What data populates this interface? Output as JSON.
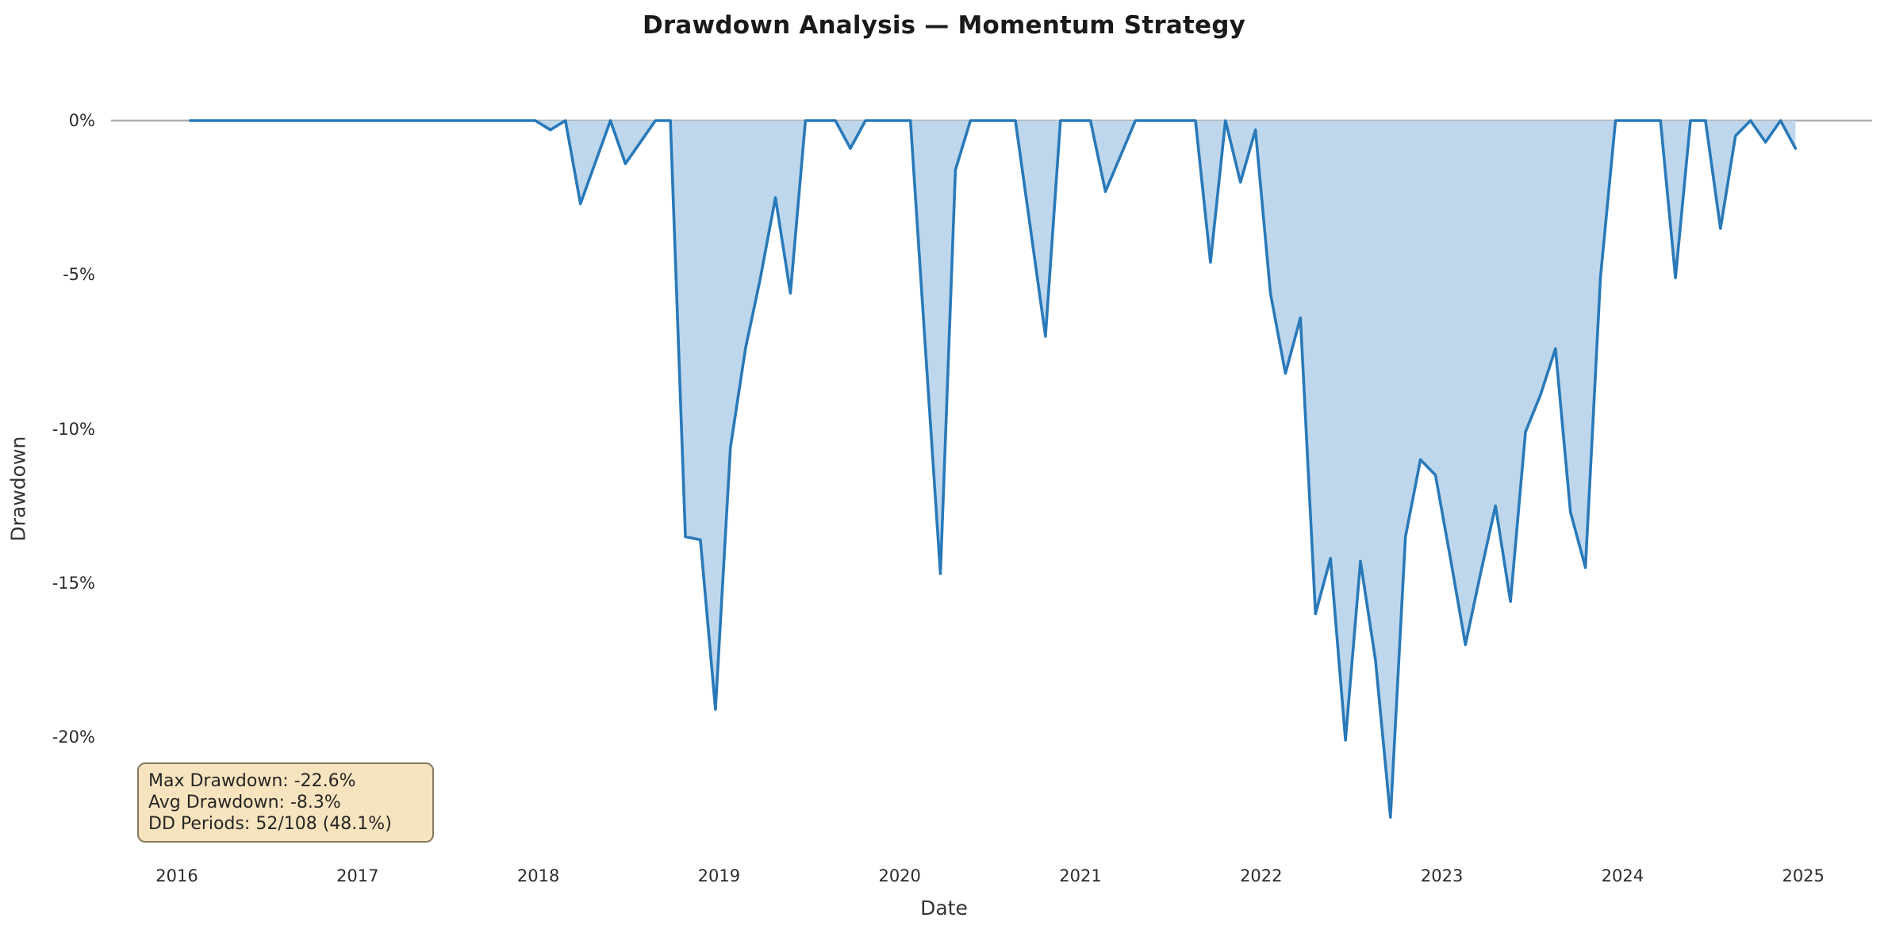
{
  "title": "Drawdown Analysis — Momentum Strategy",
  "chart_data": {
    "type": "area",
    "title": "Drawdown Analysis — Momentum Strategy",
    "xlabel": "Date",
    "ylabel": "Drawdown",
    "frequency": "monthly",
    "x_start": "2016-01",
    "x_end": "2024-12",
    "n_periods": 108,
    "x_tick_labels": [
      "2016",
      "2017",
      "2018",
      "2019",
      "2020",
      "2021",
      "2022",
      "2023",
      "2024",
      "2025"
    ],
    "y_tick_labels": [
      "0%",
      "-5%",
      "-10%",
      "-15%",
      "-20%"
    ],
    "y_tick_values": [
      0,
      -5,
      -10,
      -15,
      -20
    ],
    "ylim": [
      -23.5,
      1.2
    ],
    "grid": "zero-line-only",
    "legend": "none",
    "values_pct": [
      0,
      0,
      0,
      0,
      0,
      0,
      0,
      0,
      0,
      0,
      0,
      0,
      0,
      0,
      0,
      0,
      0,
      0,
      0,
      0,
      0,
      0,
      0,
      0,
      -0.3,
      0,
      -2.7,
      -1.35,
      0,
      -1.4,
      -0.7,
      0,
      0,
      -13.5,
      -13.6,
      -19.1,
      -10.6,
      -7.4,
      -5.1,
      -2.5,
      -5.6,
      0,
      0,
      0,
      -0.9,
      0,
      0,
      0,
      0,
      -7.4,
      -14.7,
      -1.6,
      0,
      0,
      0,
      0,
      -3.5,
      -7.0,
      0,
      0,
      0,
      -2.3,
      -1.15,
      0,
      0,
      0,
      0,
      0,
      -4.6,
      0,
      -2.0,
      -0.3,
      -5.6,
      -8.2,
      -6.4,
      -16.0,
      -14.2,
      -20.1,
      -14.3,
      -17.5,
      -22.6,
      -13.5,
      -11.0,
      -11.5,
      -14.2,
      -17.0,
      -14.7,
      -12.5,
      -15.6,
      -10.1,
      -8.9,
      -7.4,
      -12.7,
      -14.5,
      -5.1,
      0,
      0,
      0,
      0,
      -5.1,
      0,
      0,
      -3.5,
      -0.5,
      0,
      -0.7,
      0,
      -0.9
    ],
    "annotation": {
      "lines": [
        "Max Drawdown: -22.6%",
        "Avg Drawdown: -8.3%",
        "DD Periods: 52/108 (48.1%)"
      ]
    },
    "colors": {
      "line": "#2979b9",
      "fill": "#bed7ec",
      "zero_line": "#b0b0b0",
      "annotation_bg": "#f7e3bd",
      "annotation_border": "#857a5e",
      "title_text": "#1a1a1a",
      "tick_text": "#2b2b2b"
    }
  }
}
